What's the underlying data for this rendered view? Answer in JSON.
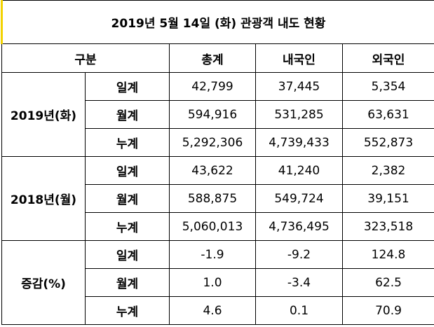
{
  "title": "2019년 5월 14일 (화) 관광객 내도 현황",
  "header": [
    "구분",
    "총계",
    "내국인",
    "외국인"
  ],
  "groups": [
    {
      "label": "2019년(화)",
      "rows": [
        {
          "label": "일계",
          "values": [
            "42,799",
            "37,445",
            "5,354"
          ]
        },
        {
          "label": "월계",
          "values": [
            "594,916",
            "531,285",
            "63,631"
          ]
        },
        {
          "label": "누계",
          "values": [
            "5,292,306",
            "4,739,433",
            "552,873"
          ]
        }
      ]
    },
    {
      "label": "2018년(월)",
      "rows": [
        {
          "label": "일계",
          "values": [
            "43,622",
            "41,240",
            "2,382"
          ]
        },
        {
          "label": "월계",
          "values": [
            "588,875",
            "549,724",
            "39,151"
          ]
        },
        {
          "label": "누계",
          "values": [
            "5,060,013",
            "4,736,495",
            "323,518"
          ]
        }
      ]
    },
    {
      "label": "증감(%)",
      "rows": [
        {
          "label": "일계",
          "values": [
            "-1.9",
            "-9.2",
            "124.8"
          ]
        },
        {
          "label": "월계",
          "values": [
            "1.0",
            "-3.4",
            "62.5"
          ]
        },
        {
          "label": "누계",
          "values": [
            "4.6",
            "0.1",
            "70.9"
          ]
        }
      ]
    }
  ]
}
